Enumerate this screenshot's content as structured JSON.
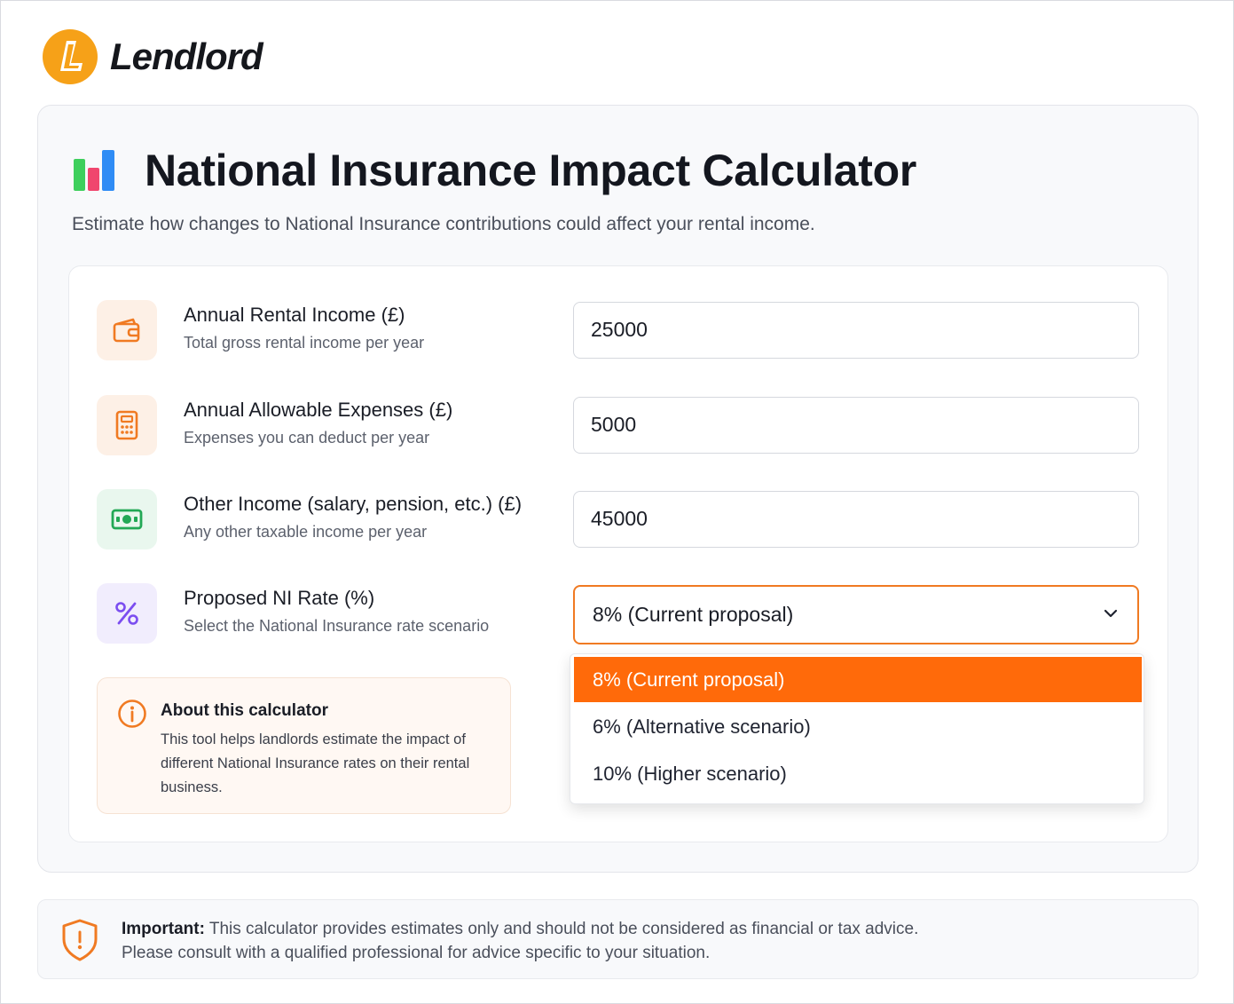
{
  "brand": {
    "name": "Lendlord",
    "logo_letter": "L",
    "accent_color": "#f6a118"
  },
  "calculator": {
    "title": "National Insurance Impact Calculator",
    "subtitle": "Estimate how changes to National Insurance contributions could affect your rental income."
  },
  "fields": [
    {
      "label": "Annual Rental Income (£)",
      "help": "Total gross rental income per year",
      "value": "25000",
      "icon": "wallet-icon"
    },
    {
      "label": "Annual Allowable Expenses (£)",
      "help": "Expenses you can deduct per year",
      "value": "5000",
      "icon": "calculator-icon"
    },
    {
      "label": "Other Income (salary, pension, etc.) (£)",
      "help": "Any other taxable income per year",
      "value": "45000",
      "icon": "banknote-icon"
    },
    {
      "label": "Proposed NI Rate (%)",
      "help": "Select the National Insurance rate scenario",
      "value": "8% (Current proposal)",
      "icon": "percent-icon"
    }
  ],
  "rate_options": [
    "8% (Current proposal)",
    "6% (Alternative scenario)",
    "10% (Higher scenario)"
  ],
  "selected_option": "8% (Current proposal)",
  "info": {
    "title": "About this calculator",
    "body": "This tool helps landlords estimate the impact of different National Insurance rates on their rental business."
  },
  "note": {
    "label": "Important:",
    "line1": "This calculator provides estimates only and should not be considered as financial or tax advice.",
    "line2": "Please consult with a qualified professional for advice specific to your situation."
  },
  "colors": {
    "primary_orange": "#ff6a0a",
    "focus_border": "#f07a22",
    "green": "#22a855",
    "purple": "#7b4df0"
  }
}
